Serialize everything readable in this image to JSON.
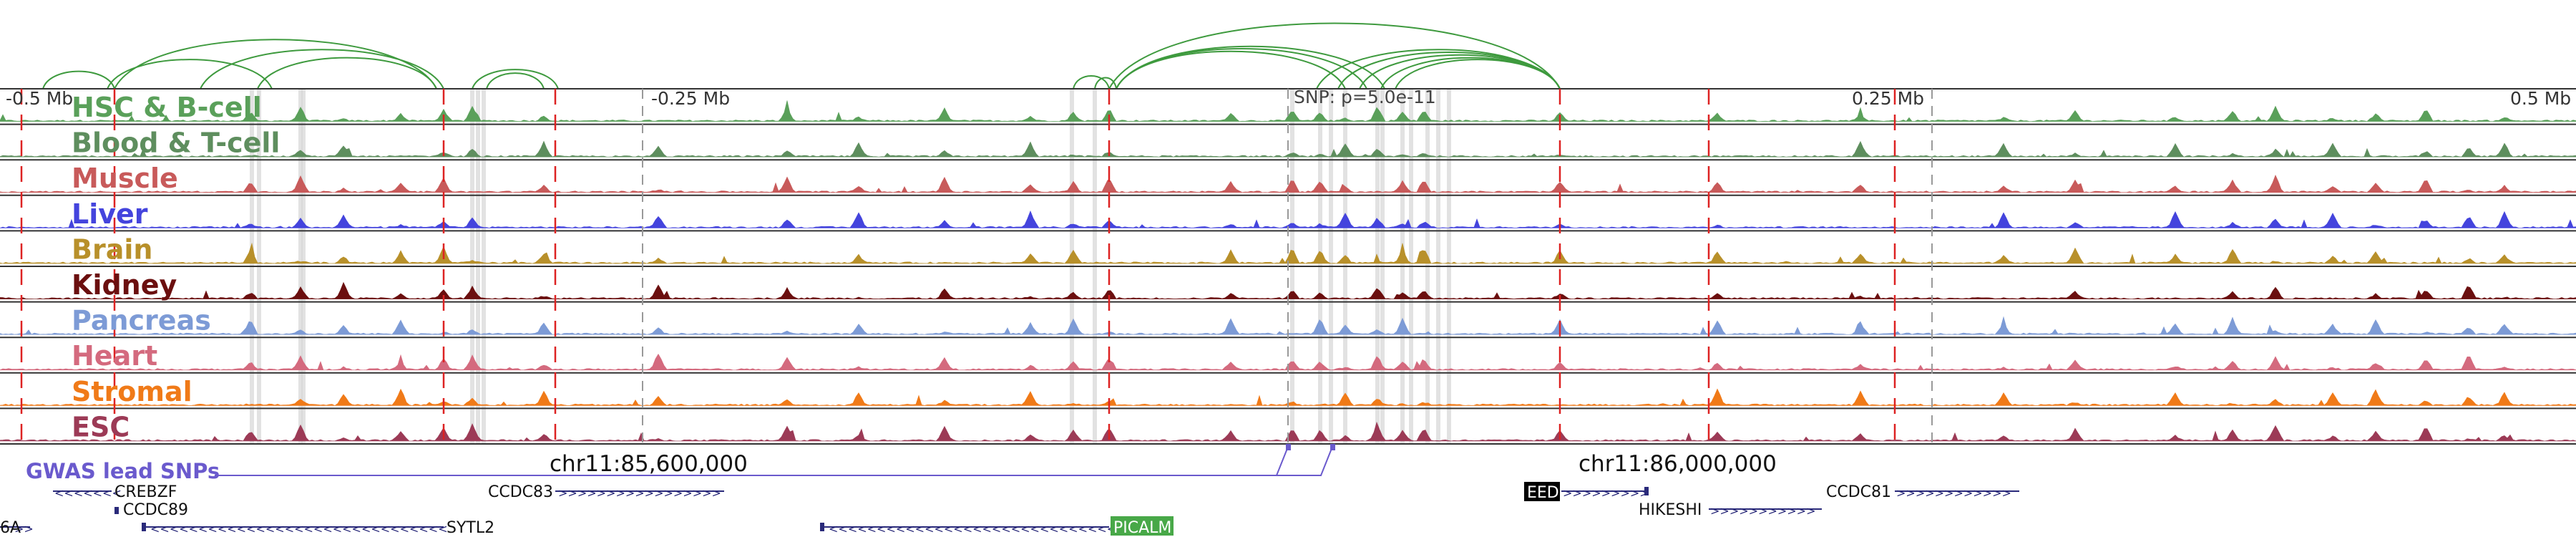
{
  "axis": {
    "ticks": [
      {
        "label": "-0.5 Mb",
        "pos": -0.5
      },
      {
        "label": "-0.25 Mb",
        "pos": -0.25
      },
      {
        "label": "0.25 Mb",
        "pos": 0.25
      },
      {
        "label": "0.5 Mb",
        "pos": 0.5
      }
    ],
    "snp_label": "SNP: p=5.0e-11",
    "coord_labels": [
      "chr11:85,600,000",
      "chr11:86,000,000"
    ]
  },
  "tracks": [
    {
      "name": "HSC & B-cell",
      "color": "#5aa05a"
    },
    {
      "name": "Blood & T-cell",
      "color": "#5e8e5e"
    },
    {
      "name": "Muscle",
      "color": "#c85a5a"
    },
    {
      "name": "Liver",
      "color": "#4444dd"
    },
    {
      "name": "Brain",
      "color": "#b8902a"
    },
    {
      "name": "Kidney",
      "color": "#6b0f0f"
    },
    {
      "name": "Pancreas",
      "color": "#7d9bd6"
    },
    {
      "name": "Heart",
      "color": "#d46a7e"
    },
    {
      "name": "Stromal",
      "color": "#f07a18"
    },
    {
      "name": "ESC",
      "color": "#9c3a56"
    }
  ],
  "gwas": {
    "label": "GWAS lead SNPs",
    "color": "#6a5acd"
  },
  "genes": [
    {
      "name": "CREBZF"
    },
    {
      "name": "CCDC89"
    },
    {
      "name": "CCDC83"
    },
    {
      "name": "SYTL2"
    },
    {
      "name": "6A"
    },
    {
      "name": "PICALM",
      "highlight": "#48a848"
    },
    {
      "name": "EED",
      "highlight": "#000000"
    },
    {
      "name": "HIKESHI"
    },
    {
      "name": "CCDC81"
    }
  ],
  "colors": {
    "loop": "#3e9a3e",
    "ld_boundary": "#dd2222",
    "snp_line": "#999999",
    "gene": "#2a2a7a"
  }
}
